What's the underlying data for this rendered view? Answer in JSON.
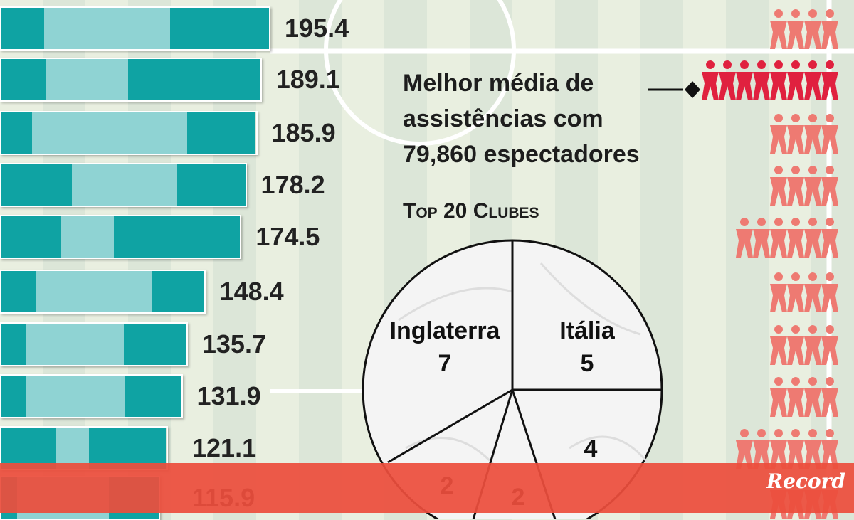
{
  "chart_data": {
    "type": "bar",
    "orientation": "horizontal",
    "values": [
      195.4,
      189.1,
      185.9,
      178.2,
      174.5,
      148.4,
      135.7,
      131.9,
      121.1,
      115.9
    ],
    "value_labels": [
      "195.4",
      "189.1",
      "185.9",
      "178.2",
      "174.5",
      "148.4",
      "135.7",
      "131.9",
      "121.1",
      "115.9"
    ],
    "segments_fraction": [
      [
        0.16,
        0.47,
        0.37
      ],
      [
        0.17,
        0.32,
        0.51
      ],
      [
        0.12,
        0.61,
        0.27
      ],
      [
        0.29,
        0.43,
        0.28
      ],
      [
        0.25,
        0.22,
        0.53
      ],
      [
        0.17,
        0.57,
        0.26
      ],
      [
        0.13,
        0.53,
        0.34
      ],
      [
        0.14,
        0.55,
        0.31
      ],
      [
        0.33,
        0.2,
        0.47
      ],
      [
        0.1,
        0.58,
        0.32
      ]
    ],
    "people_counts": [
      4,
      8,
      4,
      4,
      6,
      4,
      4,
      4,
      6,
      4
    ],
    "highlight_row": 1,
    "pie": {
      "title": "Top 20 Clubes",
      "slices": [
        {
          "label": "Inglaterra",
          "value": 7
        },
        {
          "label": "Itália",
          "value": 5
        },
        {
          "label": "",
          "value": 4
        },
        {
          "label": "",
          "value": 2
        },
        {
          "label": "",
          "value": 2
        }
      ]
    }
  },
  "note": {
    "line1": "Melhor média de",
    "line2": "assistências com",
    "line3": "79,860 espectadores"
  },
  "top20_title": "Top 20 Clubes",
  "logo": "Record",
  "colors": {
    "dark": "#0fa3a3",
    "light": "#8fd3d3",
    "red": "#e8503f",
    "people": "#ee7a72",
    "people_hl": "#e0213f"
  }
}
